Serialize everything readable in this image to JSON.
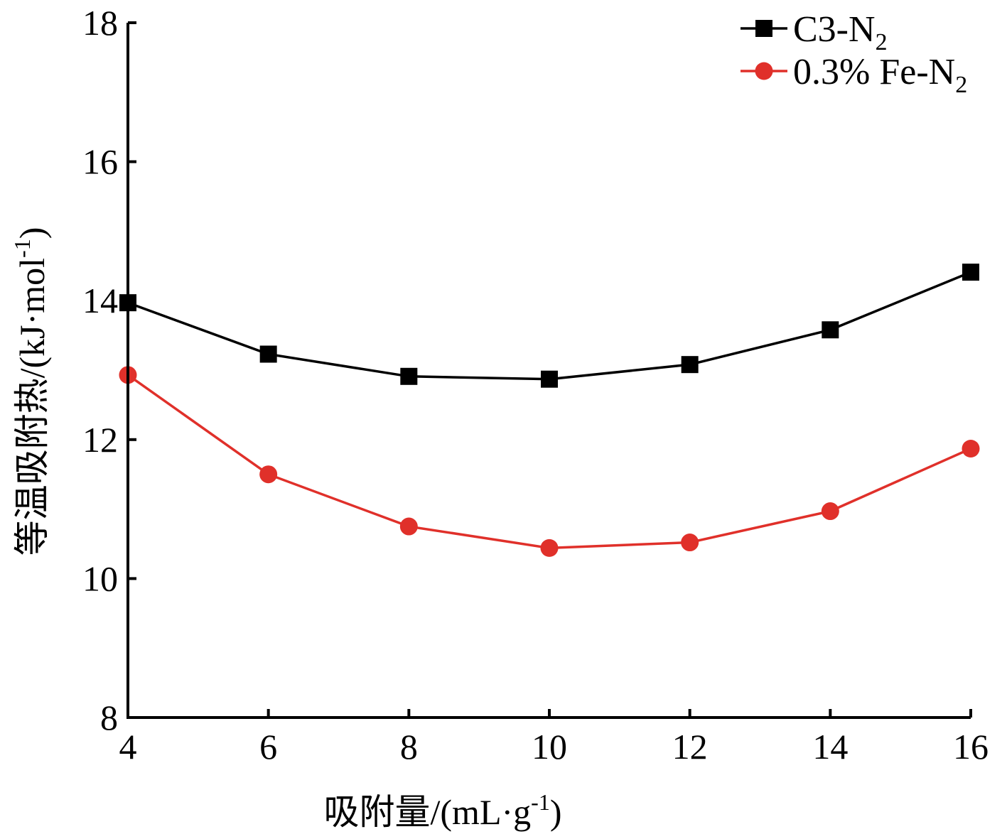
{
  "chart_data": {
    "type": "line",
    "x": [
      4,
      6,
      8,
      10,
      12,
      14,
      16
    ],
    "xlabel": "吸附量/(mL·g-1)",
    "xlabel_parts": {
      "main": "吸附量/(mL·g",
      "sup": "-1",
      "end": ")"
    },
    "ylabel": "等温吸附热/(kJ·mol-1)",
    "ylabel_parts": {
      "main": "等温吸附热/(kJ·mol",
      "sup": "-1",
      "end": ")"
    },
    "xlim": [
      4,
      16
    ],
    "ylim": [
      8,
      18
    ],
    "xticks": [
      4,
      6,
      8,
      10,
      12,
      14,
      16
    ],
    "yticks": [
      8,
      10,
      12,
      14,
      16,
      18
    ],
    "grid": false,
    "legend_position": "top-right",
    "series": [
      {
        "name": "C3-N2",
        "name_parts": {
          "main": "C3-N",
          "sub": "2"
        },
        "marker": "square",
        "color": "#000000",
        "values": [
          13.97,
          13.23,
          12.91,
          12.87,
          13.08,
          13.58,
          14.41
        ]
      },
      {
        "name": "0.3% Fe-N2",
        "name_parts": {
          "main": "0.3% Fe-N",
          "sub": "2"
        },
        "marker": "circle",
        "color": "#e0302a",
        "values": [
          12.93,
          11.5,
          10.75,
          10.44,
          10.52,
          10.97,
          11.87
        ]
      }
    ]
  }
}
